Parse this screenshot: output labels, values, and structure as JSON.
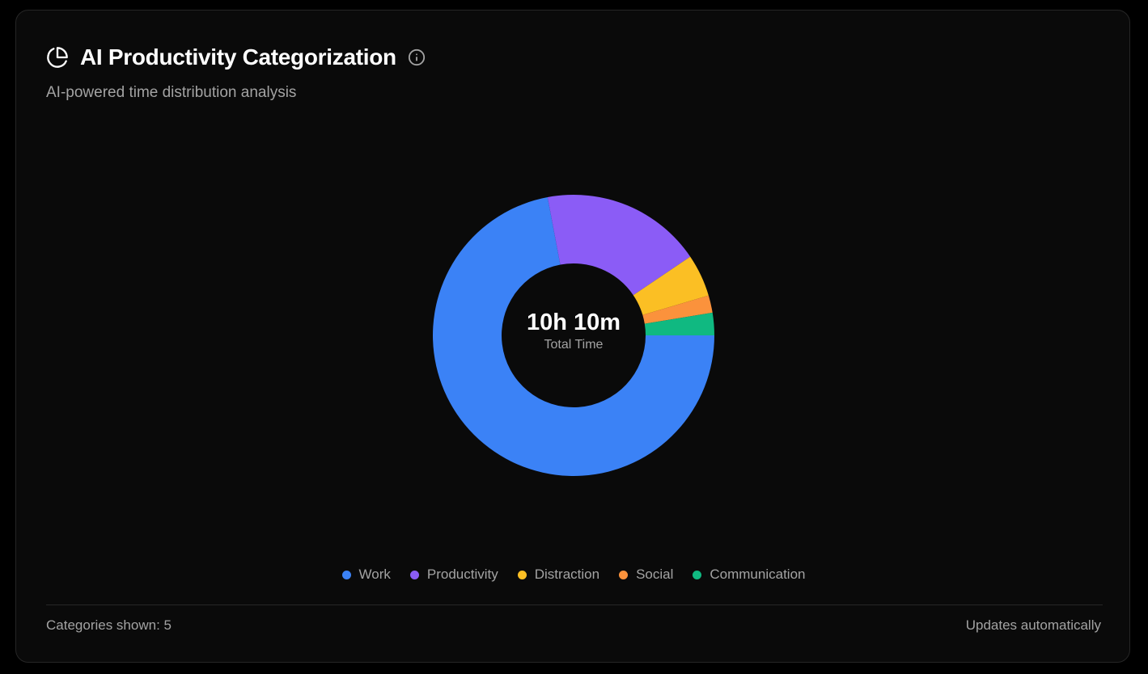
{
  "header": {
    "title": "AI Productivity Categorization",
    "subtitle": "AI-powered time distribution analysis",
    "title_icon": "pie-chart-icon",
    "info_icon": "info-icon"
  },
  "center": {
    "value": "10h 10m",
    "caption": "Total Time"
  },
  "chart_data": {
    "type": "pie",
    "variant": "donut",
    "title": "AI Productivity Categorization",
    "categories": [
      "Work",
      "Productivity",
      "Distraction",
      "Social",
      "Communication"
    ],
    "values": [
      72.4,
      18.6,
      4.9,
      2.0,
      2.6
    ],
    "colors": [
      "#3b82f6",
      "#8b5cf6",
      "#fbbf24",
      "#fb923c",
      "#10b981"
    ],
    "legend_position": "bottom"
  },
  "footer": {
    "categories_shown": "Categories shown: 5",
    "updates": "Updates automatically"
  }
}
